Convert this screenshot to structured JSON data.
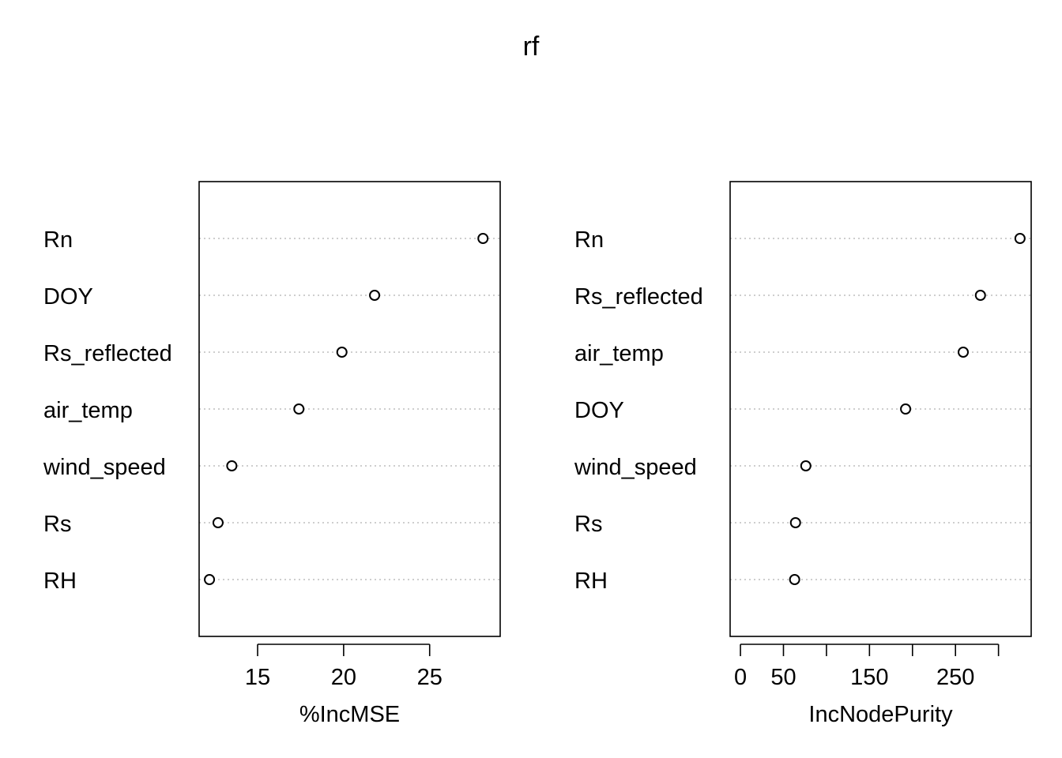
{
  "title": "rf",
  "chart_data": [
    {
      "type": "scatter",
      "xlabel": "%IncMSE",
      "xlim": [
        11.6,
        29.1
      ],
      "ticks": [
        15,
        20,
        25
      ],
      "tick_labels": [
        "15",
        "20",
        "25"
      ],
      "points": [
        {
          "label": "Rn",
          "value": 28.1
        },
        {
          "label": "DOY",
          "value": 21.8
        },
        {
          "label": "Rs_reflected",
          "value": 19.9
        },
        {
          "label": "air_temp",
          "value": 17.4
        },
        {
          "label": "wind_speed",
          "value": 13.5
        },
        {
          "label": "Rs",
          "value": 12.7
        },
        {
          "label": "RH",
          "value": 12.2
        }
      ]
    },
    {
      "type": "scatter",
      "xlabel": "IncNodePurity",
      "xlim": [
        -12,
        338
      ],
      "ticks": [
        0,
        50,
        100,
        150,
        200,
        250,
        300
      ],
      "tick_labels": [
        "0",
        "50",
        "",
        "150",
        "",
        "250",
        ""
      ],
      "points": [
        {
          "label": "Rn",
          "value": 325
        },
        {
          "label": "Rs_reflected",
          "value": 279
        },
        {
          "label": "air_temp",
          "value": 259
        },
        {
          "label": "DOY",
          "value": 192
        },
        {
          "label": "wind_speed",
          "value": 76
        },
        {
          "label": "Rs",
          "value": 64
        },
        {
          "label": "RH",
          "value": 63
        }
      ]
    }
  ]
}
